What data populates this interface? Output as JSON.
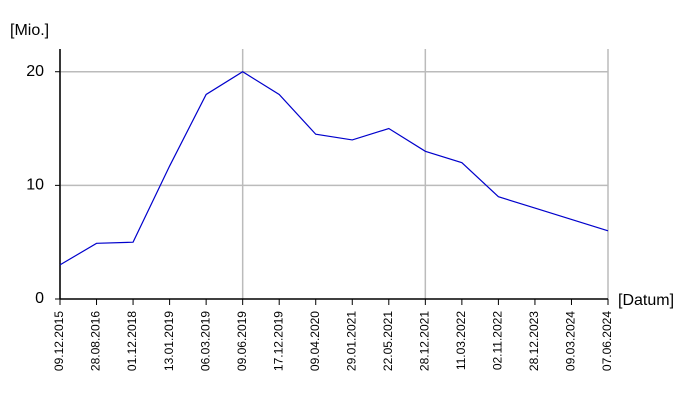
{
  "chart_data": {
    "type": "line",
    "y_label": "[Mio.]",
    "x_label": "[Datum]",
    "categories": [
      "09.12.2015",
      "28.08.2016",
      "01.12.2018",
      "13.01.2019",
      "06.03.2019",
      "09.06.2019",
      "17.12.2019",
      "09.04.2020",
      "29.01.2021",
      "22.05.2021",
      "28.12.2021",
      "11.03.2022",
      "02.11.2022",
      "28.12.2023",
      "09.03.2024",
      "07.06.2024"
    ],
    "series": [
      {
        "color": "#0000cc",
        "values": [
          3,
          4.9,
          5,
          11.7,
          18,
          20,
          18,
          14.5,
          14,
          15,
          13,
          12,
          9,
          8,
          7,
          6
        ]
      }
    ],
    "ylim": [
      0,
      22
    ],
    "yticks": [
      0,
      10,
      20
    ],
    "grid": true
  }
}
